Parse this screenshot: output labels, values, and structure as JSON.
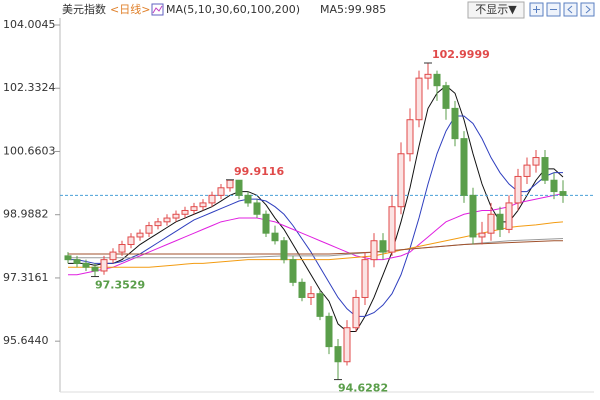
{
  "chart_data": {
    "type": "candlestick",
    "title": "美元指数",
    "period": "<日线>",
    "ma_legend": "MA(5,10,30,60,100,200)",
    "ma_label": "MA5:99.985",
    "button": "不显示▼",
    "ylim": [
      94.3,
      104.19
    ],
    "yticks": [
      104.0045,
      102.3324,
      100.6603,
      98.9882,
      97.3161,
      {
        "value": 95.644,
        "label": "95.6440"
      }
    ],
    "up_color": "#e04a4a",
    "down_color": "#5a9e4a",
    "open": [
      97.9,
      97.8,
      97.7,
      97.6,
      97.5,
      97.8,
      98.0,
      98.2,
      98.4,
      98.5,
      98.7,
      98.8,
      98.9,
      99.0,
      99.1,
      99.2,
      99.3,
      99.5,
      99.7,
      99.9,
      99.5,
      99.3,
      99.0,
      98.5,
      98.3,
      97.8,
      97.2,
      96.8,
      96.9,
      96.3,
      95.5,
      95.1,
      96.0,
      96.8,
      97.8,
      98.3,
      98.0,
      99.2,
      100.6,
      101.5,
      102.6,
      102.7,
      102.4,
      101.8,
      101.0,
      99.5,
      98.4,
      98.5,
      99.0,
      98.6,
      99.3,
      100.0,
      100.3,
      100.5,
      99.9,
      99.6
    ],
    "high": [
      98.0,
      97.9,
      97.8,
      97.7,
      97.9,
      98.1,
      98.3,
      98.5,
      98.6,
      98.8,
      98.9,
      99.0,
      99.1,
      99.2,
      99.3,
      99.4,
      99.6,
      99.8,
      99.9116,
      99.9,
      99.6,
      99.4,
      99.1,
      98.7,
      98.4,
      97.9,
      97.3,
      97.1,
      97.0,
      96.4,
      95.7,
      96.2,
      97.0,
      98.0,
      98.5,
      98.5,
      99.5,
      100.9,
      101.8,
      102.8,
      102.9999,
      102.8,
      102.5,
      102.0,
      101.2,
      99.7,
      98.8,
      99.3,
      99.2,
      99.5,
      100.2,
      100.5,
      100.7,
      100.7,
      100.1,
      99.9
    ],
    "low": [
      97.7,
      97.6,
      97.5,
      97.3529,
      97.4,
      97.7,
      97.9,
      98.1,
      98.3,
      98.4,
      98.6,
      98.7,
      98.8,
      98.9,
      99.0,
      99.1,
      99.2,
      99.4,
      99.6,
      99.4,
      99.2,
      98.9,
      98.4,
      98.2,
      97.7,
      97.1,
      96.7,
      96.6,
      96.2,
      95.3,
      94.6282,
      95.0,
      95.9,
      96.6,
      97.6,
      97.8,
      97.9,
      99.0,
      100.4,
      101.3,
      102.3,
      102.0,
      101.5,
      100.8,
      99.3,
      98.2,
      98.2,
      98.3,
      98.4,
      98.5,
      99.1,
      99.8,
      100.1,
      99.8,
      99.4,
      99.3
    ],
    "close": [
      97.8,
      97.7,
      97.6,
      97.5,
      97.8,
      98.0,
      98.2,
      98.4,
      98.5,
      98.7,
      98.8,
      98.9,
      99.0,
      99.1,
      99.2,
      99.3,
      99.5,
      99.7,
      99.9,
      99.5,
      99.3,
      99.0,
      98.5,
      98.3,
      97.8,
      97.2,
      96.8,
      96.9,
      96.3,
      95.5,
      95.1,
      96.0,
      96.8,
      97.8,
      98.3,
      98.0,
      99.2,
      100.6,
      101.5,
      102.6,
      102.7,
      102.4,
      101.8,
      101.0,
      99.5,
      98.4,
      98.5,
      99.0,
      98.6,
      99.3,
      100.0,
      100.3,
      100.5,
      99.9,
      99.6,
      99.5
    ],
    "high_labels": [
      102.9999,
      99.9116
    ],
    "low_labels": [
      97.3529,
      94.6282
    ],
    "series": [
      {
        "color": "#111111",
        "values": [
          97.7,
          97.7,
          97.7,
          97.65,
          97.7,
          97.7,
          97.8,
          98.0,
          98.2,
          98.35,
          98.5,
          98.65,
          98.8,
          98.9,
          99.0,
          99.1,
          99.2,
          99.35,
          99.5,
          99.6,
          99.6,
          99.5,
          99.25,
          98.9,
          98.6,
          98.2,
          97.8,
          97.4,
          97.0,
          96.7,
          96.1,
          95.9,
          95.9,
          96.3,
          96.8,
          97.4,
          98.0,
          98.8,
          99.7,
          100.8,
          101.8,
          102.2,
          102.4,
          102.2,
          101.5,
          100.6,
          99.8,
          99.2,
          98.8,
          98.8,
          99.1,
          99.5,
          99.9,
          100.2,
          100.2,
          99.985
        ]
      },
      {
        "color": "#2f3fbf",
        "values": [
          97.8,
          97.8,
          97.75,
          97.7,
          97.7,
          97.7,
          97.75,
          97.85,
          97.95,
          98.1,
          98.25,
          98.4,
          98.55,
          98.7,
          98.85,
          98.95,
          99.05,
          99.15,
          99.25,
          99.35,
          99.4,
          99.4,
          99.35,
          99.2,
          99.0,
          98.7,
          98.35,
          98.0,
          97.6,
          97.2,
          96.8,
          96.5,
          96.3,
          96.3,
          96.4,
          96.6,
          96.9,
          97.4,
          98.1,
          98.9,
          99.8,
          100.6,
          101.2,
          101.6,
          101.6,
          101.4,
          101.0,
          100.5,
          100.1,
          99.8,
          99.6,
          99.6,
          99.8,
          100.0,
          100.1,
          100.1
        ]
      },
      {
        "color": "#e020e0",
        "values": [
          97.4,
          97.4,
          97.45,
          97.5,
          97.55,
          97.6,
          97.7,
          97.8,
          97.9,
          98.0,
          98.1,
          98.2,
          98.3,
          98.4,
          98.5,
          98.6,
          98.7,
          98.8,
          98.85,
          98.9,
          98.9,
          98.9,
          98.85,
          98.8,
          98.7,
          98.6,
          98.5,
          98.4,
          98.3,
          98.2,
          98.1,
          98.0,
          97.9,
          97.85,
          97.8,
          97.8,
          97.85,
          97.9,
          98.0,
          98.2,
          98.4,
          98.6,
          98.8,
          98.9,
          99.0,
          99.05,
          99.1,
          99.1,
          99.15,
          99.2,
          99.3,
          99.35,
          99.4,
          99.45,
          99.5,
          99.55
        ]
      },
      {
        "color": "#f39c12",
        "values": [
          97.6,
          97.6,
          97.6,
          97.6,
          97.6,
          97.6,
          97.6,
          97.6,
          97.6,
          97.6,
          97.62,
          97.64,
          97.66,
          97.68,
          97.7,
          97.7,
          97.72,
          97.74,
          97.76,
          97.78,
          97.8,
          97.8,
          97.8,
          97.8,
          97.8,
          97.8,
          97.8,
          97.8,
          97.8,
          97.8,
          97.82,
          97.84,
          97.86,
          97.88,
          97.9,
          97.95,
          98.0,
          98.05,
          98.1,
          98.15,
          98.2,
          98.25,
          98.3,
          98.35,
          98.4,
          98.45,
          98.5,
          98.55,
          98.6,
          98.65,
          98.68,
          98.7,
          98.72,
          98.75,
          98.78,
          98.8
        ]
      },
      {
        "color": "#9a9a9a",
        "values": [
          97.85,
          97.85,
          97.85,
          97.85,
          97.85,
          97.85,
          97.85,
          97.85,
          97.85,
          97.85,
          97.85,
          97.85,
          97.85,
          97.85,
          97.85,
          97.85,
          97.85,
          97.85,
          97.85,
          97.85,
          97.86,
          97.87,
          97.88,
          97.89,
          97.9,
          97.9,
          97.9,
          97.9,
          97.9,
          97.9,
          97.92,
          97.94,
          97.96,
          97.98,
          98.0,
          98.02,
          98.04,
          98.06,
          98.08,
          98.1,
          98.12,
          98.14,
          98.16,
          98.18,
          98.2,
          98.22,
          98.24,
          98.26,
          98.28,
          98.3,
          98.31,
          98.32,
          98.33,
          98.34,
          98.35,
          98.36
        ]
      },
      {
        "color": "#a0522d",
        "values": [
          97.95,
          97.95,
          97.95,
          97.95,
          97.95,
          97.95,
          97.95,
          97.95,
          97.95,
          97.95,
          97.95,
          97.95,
          97.95,
          97.95,
          97.95,
          97.95,
          97.95,
          97.95,
          97.95,
          97.95,
          97.95,
          97.95,
          97.95,
          97.95,
          97.95,
          97.95,
          97.95,
          97.95,
          97.95,
          97.95,
          97.96,
          97.97,
          97.98,
          97.99,
          98.0,
          98.02,
          98.04,
          98.06,
          98.08,
          98.1,
          98.12,
          98.14,
          98.16,
          98.18,
          98.2,
          98.21,
          98.22,
          98.23,
          98.24,
          98.25,
          98.26,
          98.27,
          98.28,
          98.29,
          98.3,
          98.3
        ]
      }
    ],
    "last_close_line": true
  }
}
